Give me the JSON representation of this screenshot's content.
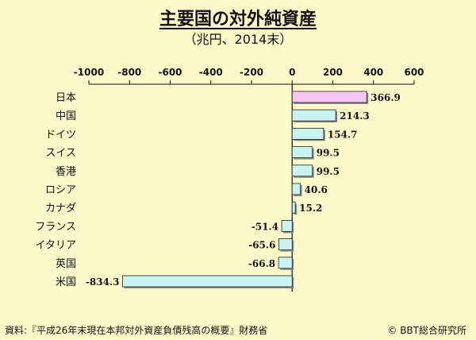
{
  "chart_data": {
    "type": "bar",
    "orientation": "horizontal",
    "title": "主要国の対外純資産",
    "subtitle": "（兆円、2014末）",
    "categories": [
      "日本",
      "中国",
      "ドイツ",
      "スイス",
      "香港",
      "ロシア",
      "カナダ",
      "フランス",
      "イタリア",
      "英国",
      "米国"
    ],
    "values": [
      366.9,
      214.3,
      154.7,
      99.5,
      99.5,
      40.6,
      15.2,
      -51.4,
      -65.6,
      -66.8,
      -834.3
    ],
    "value_labels": [
      "366.9",
      "214.3",
      "154.7",
      "99.5",
      "99.5",
      "40.6",
      "15.2",
      "-51.4",
      "-65.6",
      "-66.8",
      "-834.3"
    ],
    "xlim": [
      -1000,
      600
    ],
    "xticks": [
      -1000,
      -800,
      -600,
      -400,
      -200,
      0,
      200,
      400,
      600
    ],
    "tick_labels": [
      "-1000",
      "-800",
      "-600",
      "-400",
      "-200",
      "0",
      "200",
      "400",
      "600"
    ],
    "axis_position": "top",
    "grid": false,
    "colors": {
      "highlight": "#f7c6f0",
      "bar": "#c8f4f4",
      "background": "#fdf9c9"
    },
    "highlight_category": "日本"
  },
  "footer": {
    "source": "資料:『平成26年末現在本邦対外資産負債残高の概要』財務省",
    "copyright": "© BBT総合研究所"
  }
}
